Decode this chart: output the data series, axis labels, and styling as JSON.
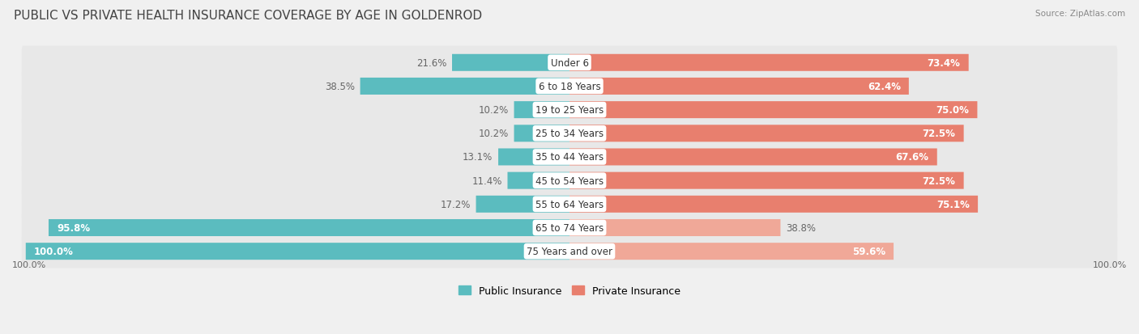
{
  "title": "PUBLIC VS PRIVATE HEALTH INSURANCE COVERAGE BY AGE IN GOLDENROD",
  "source": "Source: ZipAtlas.com",
  "categories": [
    "Under 6",
    "6 to 18 Years",
    "19 to 25 Years",
    "25 to 34 Years",
    "35 to 44 Years",
    "45 to 54 Years",
    "55 to 64 Years",
    "65 to 74 Years",
    "75 Years and over"
  ],
  "public_values": [
    21.6,
    38.5,
    10.2,
    10.2,
    13.1,
    11.4,
    17.2,
    95.8,
    100.0
  ],
  "private_values": [
    73.4,
    62.4,
    75.0,
    72.5,
    67.6,
    72.5,
    75.1,
    38.8,
    59.6
  ],
  "public_color": "#5bbcbf",
  "private_color_normal": "#e87f6e",
  "private_color_light": "#f0a898",
  "light_private_rows": [
    "65 to 74 Years",
    "75 Years and over"
  ],
  "row_bg_color": "#e8e8e8",
  "outer_bg_color": "#f0f0f0",
  "title_color": "#444444",
  "value_color_inside": "white",
  "value_color_outside": "#555555",
  "label_font_size": 8.5,
  "title_font_size": 11,
  "source_font_size": 7.5,
  "axis_label_font_size": 8,
  "legend_font_size": 9,
  "x_left_label": "100.0%",
  "x_right_label": "100.0%",
  "max_val": 100.0
}
